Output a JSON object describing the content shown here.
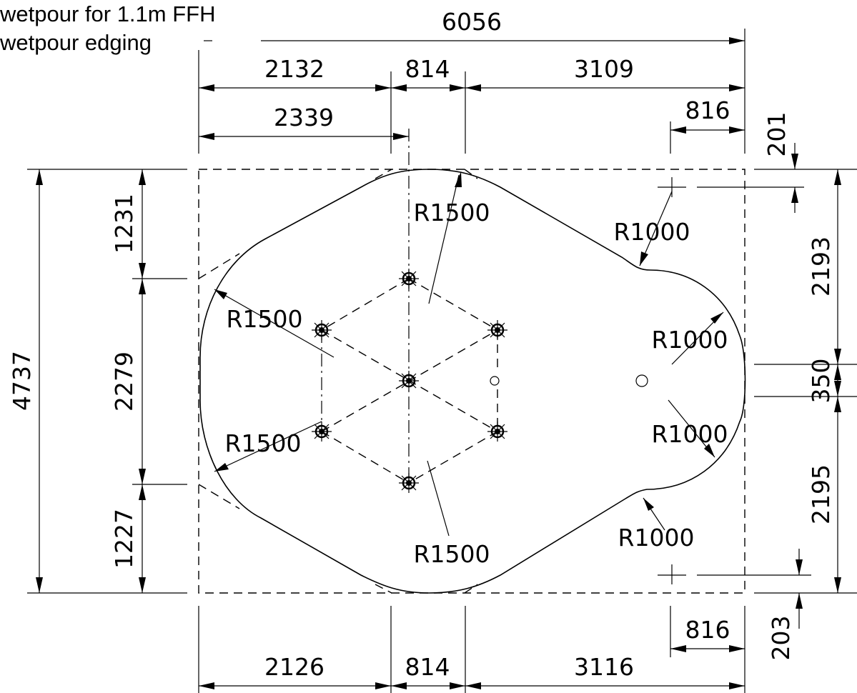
{
  "notes": {
    "line1": "wetpour for 1.1m FFH",
    "line2": "wetpour edging"
  },
  "dimensions": {
    "overall_width": "6056",
    "top_left": "2132",
    "top_mid": "814",
    "top_right": "3109",
    "top_center_offset": "2339",
    "top_right_offset": "816",
    "top_right_vertical": "201",
    "left_overall": "4737",
    "left_top": "1231",
    "left_mid": "2279",
    "left_bottom": "1227",
    "right_top": "2193",
    "right_mid": "350",
    "right_bottom": "2195",
    "bottom_right_offset": "816",
    "bottom_right_vertical": "203",
    "bottom_left": "2126",
    "bottom_mid": "814",
    "bottom_right": "3116"
  },
  "radii": {
    "top_center": "R1500",
    "left_upper": "R1500",
    "left_lower": "R1500",
    "bottom_center": "R1500",
    "right_top": "R1000",
    "right_upper": "R1000",
    "right_lower": "R1000",
    "right_bottom": "R1000"
  }
}
